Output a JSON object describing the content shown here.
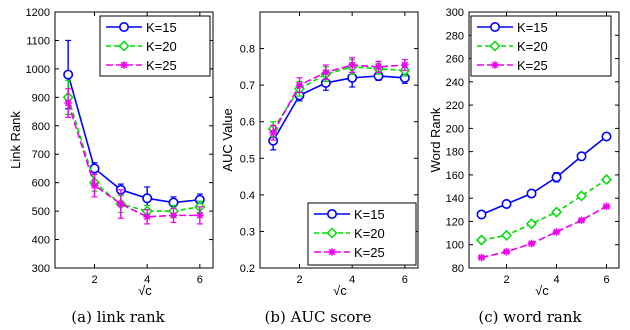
{
  "chart_data": [
    {
      "type": "line",
      "caption": "(a) link rank",
      "ylabel": "Link Rank",
      "xlabel": "√c",
      "x": [
        1,
        2,
        3,
        4,
        5,
        6
      ],
      "xlim": [
        0.5,
        6.5
      ],
      "xticks": [
        2,
        4,
        6
      ],
      "ylim": [
        300,
        1200
      ],
      "yticks": [
        300,
        400,
        500,
        600,
        700,
        800,
        900,
        1000,
        1100,
        1200
      ],
      "legend_position": "top-right",
      "series": [
        {
          "name": "K=15",
          "values": [
            980,
            650,
            575,
            545,
            530,
            540
          ],
          "errors": [
            120,
            20,
            20,
            40,
            20,
            20
          ]
        },
        {
          "name": "K=20",
          "values": [
            900,
            600,
            525,
            500,
            500,
            515
          ],
          "errors": [
            60,
            30,
            30,
            20,
            20,
            20
          ]
        },
        {
          "name": "K=25",
          "values": [
            880,
            590,
            525,
            480,
            485,
            485
          ],
          "errors": [
            50,
            40,
            50,
            25,
            25,
            30
          ]
        }
      ]
    },
    {
      "type": "line",
      "caption": "(b) AUC score",
      "ylabel": "AUC Value",
      "xlabel": "√c",
      "x": [
        1,
        2,
        3,
        4,
        5,
        6
      ],
      "xlim": [
        0.5,
        6.5
      ],
      "xticks": [
        2,
        4,
        6
      ],
      "ylim": [
        0.2,
        0.9
      ],
      "yticks": [
        0.2,
        0.3,
        0.4,
        0.5,
        0.6,
        0.7,
        0.8
      ],
      "legend_position": "bottom-right",
      "series": [
        {
          "name": "K=15",
          "values": [
            0.548,
            0.672,
            0.706,
            0.72,
            0.725,
            0.72
          ],
          "errors": [
            0.025,
            0.015,
            0.02,
            0.025,
            0.012,
            0.015
          ]
        },
        {
          "name": "K=20",
          "values": [
            0.58,
            0.69,
            0.73,
            0.75,
            0.745,
            0.74
          ],
          "errors": [
            0.02,
            0.02,
            0.02,
            0.02,
            0.015,
            0.015
          ]
        },
        {
          "name": "K=25",
          "values": [
            0.57,
            0.7,
            0.735,
            0.755,
            0.75,
            0.755
          ],
          "errors": [
            0.02,
            0.02,
            0.02,
            0.02,
            0.015,
            0.015
          ]
        }
      ]
    },
    {
      "type": "line",
      "caption": "(c) word rank",
      "ylabel": "Word Rank",
      "xlabel": "√c",
      "x": [
        1,
        2,
        3,
        4,
        5,
        6
      ],
      "xlim": [
        0.5,
        6.5
      ],
      "xticks": [
        2,
        4,
        6
      ],
      "ylim": [
        80,
        300
      ],
      "yticks": [
        80,
        100,
        120,
        140,
        160,
        180,
        200,
        220,
        240,
        260,
        280,
        300
      ],
      "legend_position": "top-left",
      "series": [
        {
          "name": "K=15",
          "values": [
            126,
            135,
            144,
            158,
            176,
            193
          ],
          "errors": [
            2,
            2,
            2,
            4,
            2,
            2
          ]
        },
        {
          "name": "K=20",
          "values": [
            104,
            108,
            118,
            128,
            142,
            156
          ],
          "errors": [
            2,
            2,
            2,
            2,
            2,
            2
          ]
        },
        {
          "name": "K=25",
          "values": [
            89,
            94,
            101,
            111,
            121,
            133
          ],
          "errors": [
            1,
            1,
            1,
            1,
            1,
            1
          ]
        }
      ]
    }
  ],
  "series_colors": [
    "#0000ff",
    "#00dd00",
    "#ee00ee"
  ],
  "series_markers": [
    "circle",
    "diamond",
    "star"
  ],
  "series_dashes": [
    "",
    "5,3",
    "7,3"
  ]
}
